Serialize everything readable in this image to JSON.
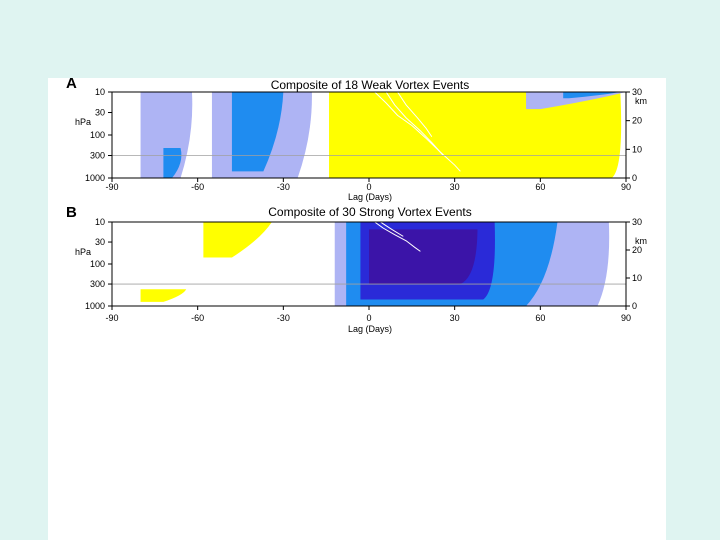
{
  "colors": {
    "background": "#dff4f1",
    "slide": "#ffffff",
    "levels": {
      "-4": "#3b14a8",
      "-3": "#2a2ad8",
      "-2": "#1f8cf0",
      "-1": "#aeb4f4",
      "0": "#ffffff",
      "1": "#ffff00",
      "2": "#ffc000",
      "3": "#ff6b00",
      "4": "#ff0000"
    }
  },
  "chart_data": [
    {
      "type": "heatmap",
      "panel_label": "A",
      "title": "Composite of 18 Weak Vortex Events",
      "xlabel": "Lag (Days)",
      "ylabel": "hPa",
      "y2label": "km",
      "xlim": [
        -90,
        90
      ],
      "x_ticks": [
        "-90",
        "-60",
        "-30",
        "0",
        "30",
        "60",
        "90"
      ],
      "y_ticks": [
        "10",
        "30",
        "100",
        "300",
        "1000"
      ],
      "y2_ticks": [
        "30",
        "20",
        "10",
        "0"
      ],
      "y_scale": "log",
      "reference_level_hPa": 300,
      "regions": [
        {
          "level": 4,
          "from": [
            0,
            10
          ],
          "to": [
            75,
            10
          ],
          "sag_hPa": 280,
          "bottom_hPa": 560,
          "x_end_at_bottom": 45
        },
        {
          "level": 3,
          "from": [
            -3,
            10
          ],
          "to": [
            78,
            10
          ],
          "sag_hPa": 400,
          "bottom_hPa": 700,
          "x_end_at_bottom": 62
        },
        {
          "level": 2,
          "from": [
            -6,
            10
          ],
          "to": [
            82,
            10
          ],
          "sag_hPa": 500,
          "bottom_hPa": 850,
          "x_end_at_bottom": 74
        },
        {
          "level": 1,
          "from": [
            -14,
            10
          ],
          "to": [
            88,
            10
          ],
          "sag_hPa": 600,
          "bottom_hPa": 1000,
          "x_end_at_bottom": 85
        },
        {
          "level": -1,
          "from": [
            -55,
            10
          ],
          "to": [
            -20,
            10
          ],
          "sag_hPa": 0,
          "bottom_hPa": 1000,
          "x_end_at_bottom": -25
        },
        {
          "level": -2,
          "from": [
            -48,
            10
          ],
          "to": [
            -30,
            10
          ],
          "sag_hPa": 0,
          "bottom_hPa": 700,
          "x_end_at_bottom": -37
        },
        {
          "level": -1,
          "from": [
            -80,
            10
          ],
          "to": [
            -62,
            10
          ],
          "sag_hPa": 0,
          "bottom_hPa": 1000,
          "x_end_at_bottom": -66
        },
        {
          "level": -2,
          "from": [
            -72,
            200
          ],
          "to": [
            -66,
            200
          ],
          "sag_hPa": 0,
          "bottom_hPa": 1000,
          "x_end_at_bottom": -69
        },
        {
          "level": -1,
          "from": [
            55,
            10
          ],
          "to": [
            90,
            10
          ],
          "sag_hPa": 0,
          "bottom_hPa": 25,
          "x_end_at_bottom": 60
        },
        {
          "level": -2,
          "from": [
            68,
            10
          ],
          "to": [
            88,
            10
          ],
          "sag_hPa": 0,
          "bottom_hPa": 14,
          "x_end_at_bottom": 70
        }
      ],
      "contours": [
        {
          "x": [
            2,
            6,
            10,
            15,
            20,
            25,
            30,
            32
          ],
          "hPa": [
            10,
            18,
            35,
            60,
            120,
            250,
            500,
            700
          ]
        },
        {
          "x": [
            6,
            9,
            13,
            18,
            22,
            26
          ],
          "hPa": [
            10,
            20,
            40,
            80,
            150,
            300
          ]
        },
        {
          "x": [
            10,
            13,
            17,
            20,
            22
          ],
          "hPa": [
            10,
            20,
            40,
            70,
            110
          ]
        }
      ]
    },
    {
      "type": "heatmap",
      "panel_label": "B",
      "title": "Composite of 30 Strong Vortex Events",
      "xlabel": "Lag (Days)",
      "ylabel": "hPa",
      "y2label": "km",
      "xlim": [
        -90,
        90
      ],
      "x_ticks": [
        "-90",
        "-60",
        "-30",
        "0",
        "30",
        "60",
        "90"
      ],
      "y_ticks": [
        "10",
        "30",
        "100",
        "300",
        "1000"
      ],
      "y2_ticks": [
        "30",
        "20",
        "10",
        "0"
      ],
      "y_scale": "log",
      "reference_level_hPa": 300,
      "regions": [
        {
          "level": -1,
          "from": [
            -12,
            10
          ],
          "to": [
            84,
            10
          ],
          "sag_hPa": 200,
          "bottom_hPa": 1000,
          "x_end_at_bottom": 80
        },
        {
          "level": -2,
          "from": [
            -8,
            10
          ],
          "to": [
            66,
            10
          ],
          "sag_hPa": 250,
          "bottom_hPa": 1000,
          "x_end_at_bottom": 55
        },
        {
          "level": -3,
          "from": [
            -3,
            10
          ],
          "to": [
            44,
            10
          ],
          "sag_hPa": 400,
          "bottom_hPa": 700,
          "x_end_at_bottom": 40
        },
        {
          "level": -4,
          "from": [
            0,
            15
          ],
          "to": [
            38,
            15
          ],
          "sag_hPa": 200,
          "bottom_hPa": 300,
          "x_end_at_bottom": 32
        },
        {
          "level": 1,
          "from": [
            -58,
            10
          ],
          "to": [
            -34,
            10
          ],
          "sag_hPa": 0,
          "bottom_hPa": 70,
          "x_end_at_bottom": -48
        },
        {
          "level": 1,
          "from": [
            -80,
            400
          ],
          "to": [
            -64,
            400
          ],
          "sag_hPa": 0,
          "bottom_hPa": 800,
          "x_end_at_bottom": -72
        }
      ],
      "contours": [
        {
          "x": [
            2,
            5,
            9,
            13,
            16,
            18
          ],
          "hPa": [
            10,
            14,
            20,
            28,
            40,
            50
          ]
        },
        {
          "x": [
            4,
            8,
            12
          ],
          "hPa": [
            10,
            15,
            22
          ]
        }
      ]
    }
  ]
}
